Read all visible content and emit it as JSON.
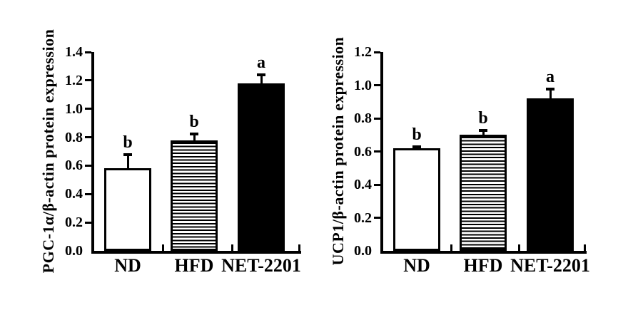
{
  "figure": {
    "background": "#ffffff",
    "ink": "#000000",
    "description": "Two-panel bar figure of protein expression"
  },
  "chart_data": [
    {
      "type": "bar",
      "panel": "left",
      "title": "",
      "ylabel": "PGC-1α/β-actin protein expression",
      "xlabel": "",
      "categories": [
        "ND",
        "HFD",
        "NET-2201"
      ],
      "values": [
        0.58,
        0.78,
        1.18
      ],
      "errors_sd_upper": [
        0.1,
        0.045,
        0.06
      ],
      "sig_letters": [
        "b",
        "b",
        "a"
      ],
      "bar_fills": [
        "white",
        "hstripe",
        "black"
      ],
      "ylim": [
        0,
        1.4
      ],
      "ytick_step": 0.2,
      "ytick_labels": [
        "0.0",
        "0.2",
        "0.4",
        "0.6",
        "0.8",
        "1.0",
        "1.2",
        "1.4"
      ],
      "grid": false,
      "legend": "none"
    },
    {
      "type": "bar",
      "panel": "right",
      "title": "",
      "ylabel": "UCP1/β-actin protein expression",
      "xlabel": "",
      "categories": [
        "ND",
        "HFD",
        "NET-2201"
      ],
      "values": [
        0.62,
        0.7,
        0.92
      ],
      "errors_sd_upper": [
        0.01,
        0.025,
        0.055
      ],
      "sig_letters": [
        "b",
        "b",
        "a"
      ],
      "bar_fills": [
        "white",
        "hstripe",
        "black"
      ],
      "ylim": [
        0,
        1.2
      ],
      "ytick_step": 0.2,
      "ytick_labels": [
        "0.0",
        "0.2",
        "0.4",
        "0.6",
        "0.8",
        "1.0",
        "1.2"
      ],
      "grid": false,
      "legend": "none"
    }
  ]
}
